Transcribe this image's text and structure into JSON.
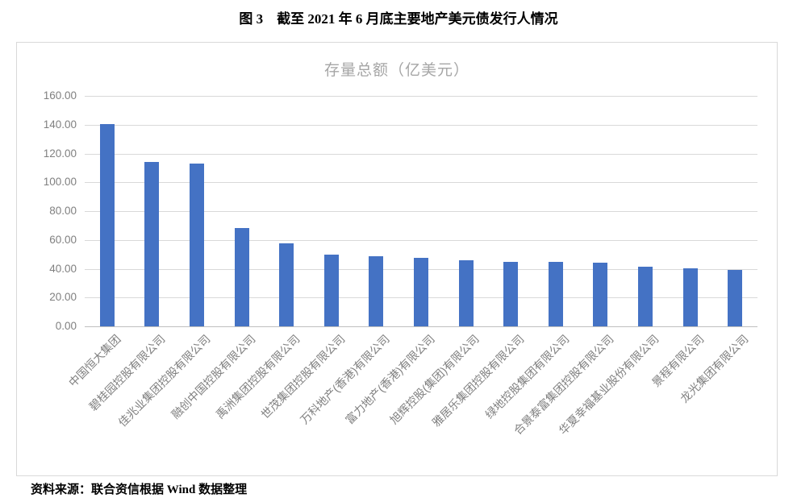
{
  "figure": {
    "title": "图 3　截至 2021 年 6 月底主要地产美元债发行人情况",
    "source_note": "资料来源：联合资信根据 Wind 数据整理"
  },
  "chart_data": {
    "type": "bar",
    "title": "存量总额（亿美元）",
    "categories": [
      "中国恒大集团",
      "碧桂园控股有限公司",
      "佳兆业集团控股有限公司",
      "融创中国控股有限公司",
      "禹洲集团控股有限公司",
      "世茂集团控股有限公司",
      "万科地产(香港)有限公司",
      "富力地产(香港)有限公司",
      "旭辉控股(集团)有限公司",
      "雅居乐集团控股有限公司",
      "绿地控股集团有限公司",
      "合景泰富集团控股有限公司",
      "华夏幸福基业股份有限公司",
      "景程有限公司",
      "龙光集团有限公司"
    ],
    "values": [
      140.2,
      113.9,
      113.0,
      68.3,
      57.5,
      49.9,
      48.7,
      47.6,
      45.8,
      44.8,
      44.9,
      44.2,
      41.6,
      40.1,
      39.4
    ],
    "xlabel": "",
    "ylabel": "",
    "ylim": [
      0,
      160
    ],
    "ytick_step": 20,
    "ytick_decimals": 2,
    "grid": true,
    "legend": "none",
    "colors": {
      "bar": "#4472C4",
      "gridline": "#D9D9D9",
      "axis_line": "#BFBFBF",
      "tick_label": "#808080",
      "chart_title": "#A6A6A6",
      "chart_border": "#D9D9D9"
    }
  }
}
